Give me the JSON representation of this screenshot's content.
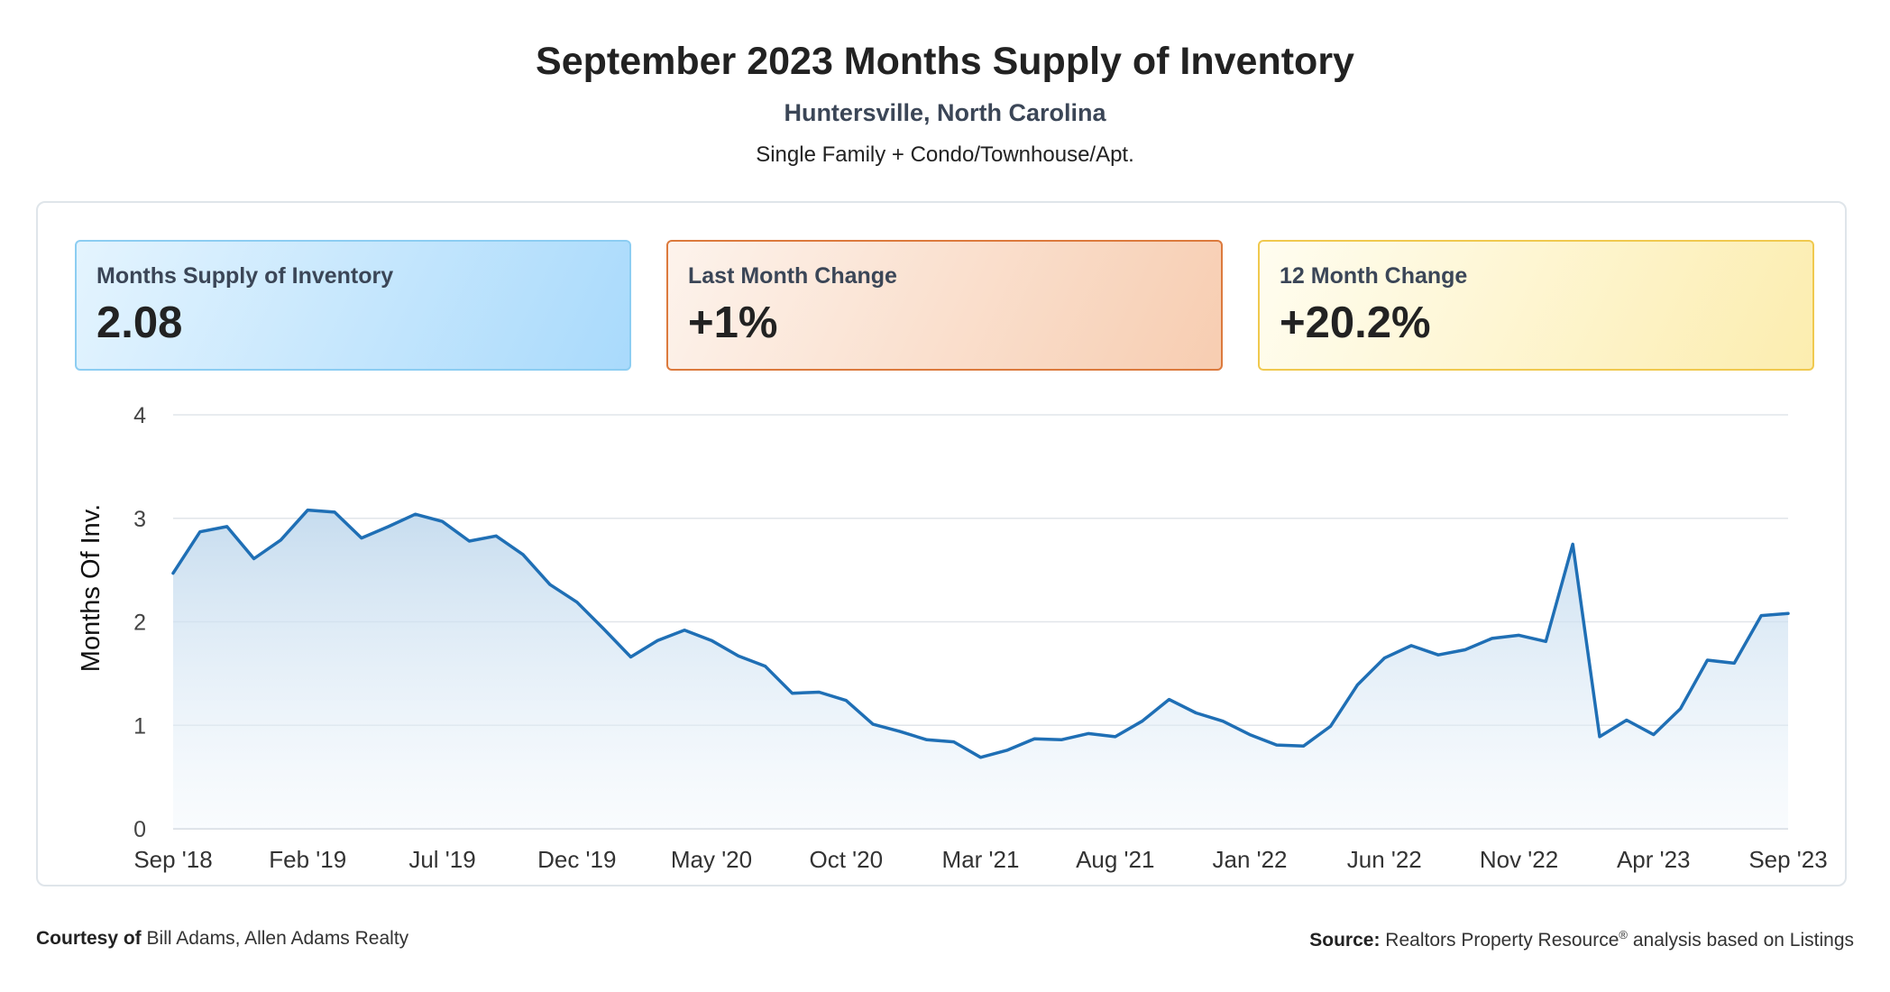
{
  "header": {
    "title": "September 2023 Months Supply of Inventory",
    "location": "Huntersville, North Carolina",
    "property_types": "Single Family + Condo/Townhouse/Apt."
  },
  "stats": [
    {
      "label": "Months Supply of Inventory",
      "value": "2.08",
      "color": "#8ccdf2"
    },
    {
      "label": "Last Month Change",
      "value": "+1%",
      "color": "#dc7a3d"
    },
    {
      "label": "12 Month Change",
      "value": "+20.2%",
      "color": "#f0c94f"
    }
  ],
  "chart_data": {
    "type": "area",
    "ylabel": "Months Of Inv.",
    "ylim": [
      0,
      4
    ],
    "y_ticks": [
      "0",
      "1",
      "2",
      "3",
      "4"
    ],
    "x_tick_labels": [
      "Sep '18",
      "Feb '19",
      "Jul '19",
      "Dec '19",
      "May '20",
      "Oct '20",
      "Mar '21",
      "Aug '21",
      "Jan '22",
      "Jun '22",
      "Nov '22",
      "Apr '23",
      "Sep '23"
    ],
    "grid": true,
    "line_color": "#1f6fb5",
    "fill_color": "#bcd6ec",
    "x": [
      "Sep '18",
      "Oct '18",
      "Nov '18",
      "Dec '18",
      "Jan '19",
      "Feb '19",
      "Mar '19",
      "Apr '19",
      "May '19",
      "Jun '19",
      "Jul '19",
      "Aug '19",
      "Sep '19",
      "Oct '19",
      "Nov '19",
      "Dec '19",
      "Jan '20",
      "Feb '20",
      "Mar '20",
      "Apr '20",
      "May '20",
      "Jun '20",
      "Jul '20",
      "Aug '20",
      "Sep '20",
      "Oct '20",
      "Nov '20",
      "Dec '20",
      "Jan '21",
      "Feb '21",
      "Mar '21",
      "Apr '21",
      "May '21",
      "Jun '21",
      "Jul '21",
      "Aug '21",
      "Sep '21",
      "Oct '21",
      "Nov '21",
      "Dec '21",
      "Jan '22",
      "Feb '22",
      "Mar '22",
      "Apr '22",
      "May '22",
      "Jun '22",
      "Jul '22",
      "Aug '22",
      "Sep '22",
      "Oct '22",
      "Nov '22",
      "Dec '22",
      "Jan '23",
      "Feb '23",
      "Mar '23",
      "Apr '23",
      "May '23",
      "Jun '23",
      "Jul '23",
      "Aug '23",
      "Sep '23"
    ],
    "values": [
      2.47,
      2.87,
      2.92,
      2.61,
      2.79,
      3.08,
      3.06,
      2.81,
      2.92,
      3.04,
      2.97,
      2.78,
      2.83,
      2.65,
      2.36,
      2.19,
      1.93,
      1.66,
      1.82,
      1.92,
      1.82,
      1.67,
      1.57,
      1.31,
      1.32,
      1.24,
      1.01,
      0.94,
      0.86,
      0.84,
      0.69,
      0.76,
      0.87,
      0.86,
      0.92,
      0.89,
      1.04,
      1.25,
      1.12,
      1.04,
      0.91,
      0.81,
      0.8,
      0.99,
      1.39,
      1.65,
      1.77,
      1.68,
      1.73,
      1.84,
      1.87,
      1.81,
      2.75,
      0.89,
      1.05,
      0.91,
      1.16,
      1.63,
      1.6,
      2.06,
      2.08
    ]
  },
  "footer": {
    "courtesy_prefix": "Courtesy of",
    "courtesy_name": "Bill Adams, Allen Adams Realty",
    "source_prefix": "Source:",
    "source_name": "Realtors Property Resource",
    "source_mark": "®",
    "source_suffix": "analysis based on Listings"
  }
}
